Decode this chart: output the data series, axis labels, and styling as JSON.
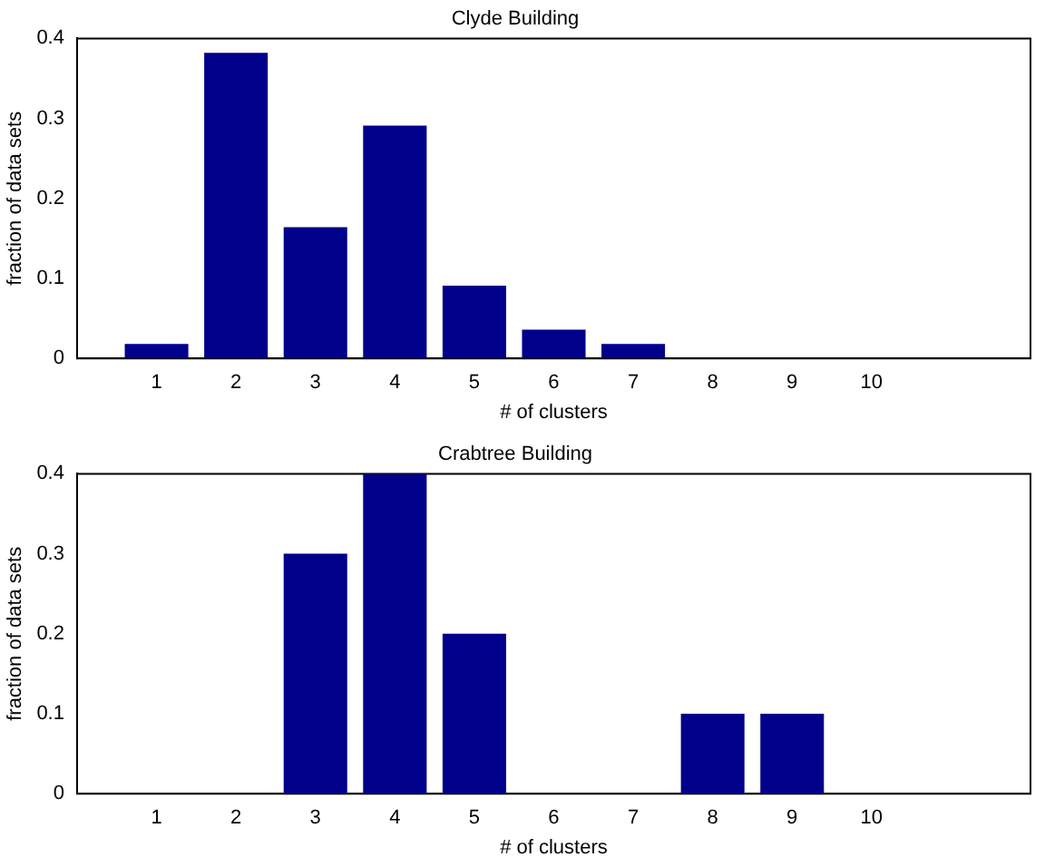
{
  "chart_data": [
    {
      "type": "bar",
      "title": "Clyde Building",
      "xlabel": "# of clusters",
      "ylabel": "fraction of data sets",
      "color": "#00008b",
      "x": [
        1,
        2,
        3,
        4,
        5,
        6,
        7,
        8,
        9,
        10
      ],
      "values": [
        0.018,
        0.382,
        0.164,
        0.291,
        0.091,
        0.036,
        0.018,
        0,
        0,
        0
      ],
      "xlim": [
        0,
        12
      ],
      "xticks": [
        1,
        2,
        3,
        4,
        5,
        6,
        7,
        8,
        9,
        10
      ],
      "ylim": [
        0,
        0.4
      ],
      "yticks": [
        0,
        0.1,
        0.2,
        0.3,
        0.4
      ]
    },
    {
      "type": "bar",
      "title": "Crabtree Building",
      "xlabel": "# of clusters",
      "ylabel": "fraction of data sets",
      "color": "#00008b",
      "x": [
        1,
        2,
        3,
        4,
        5,
        6,
        7,
        8,
        9,
        10
      ],
      "values": [
        0,
        0,
        0.3,
        0.4,
        0.2,
        0,
        0,
        0.1,
        0.1,
        0
      ],
      "xlim": [
        0,
        12
      ],
      "xticks": [
        1,
        2,
        3,
        4,
        5,
        6,
        7,
        8,
        9,
        10
      ],
      "ylim": [
        0,
        0.4
      ],
      "yticks": [
        0,
        0.1,
        0.2,
        0.3,
        0.4
      ]
    }
  ]
}
